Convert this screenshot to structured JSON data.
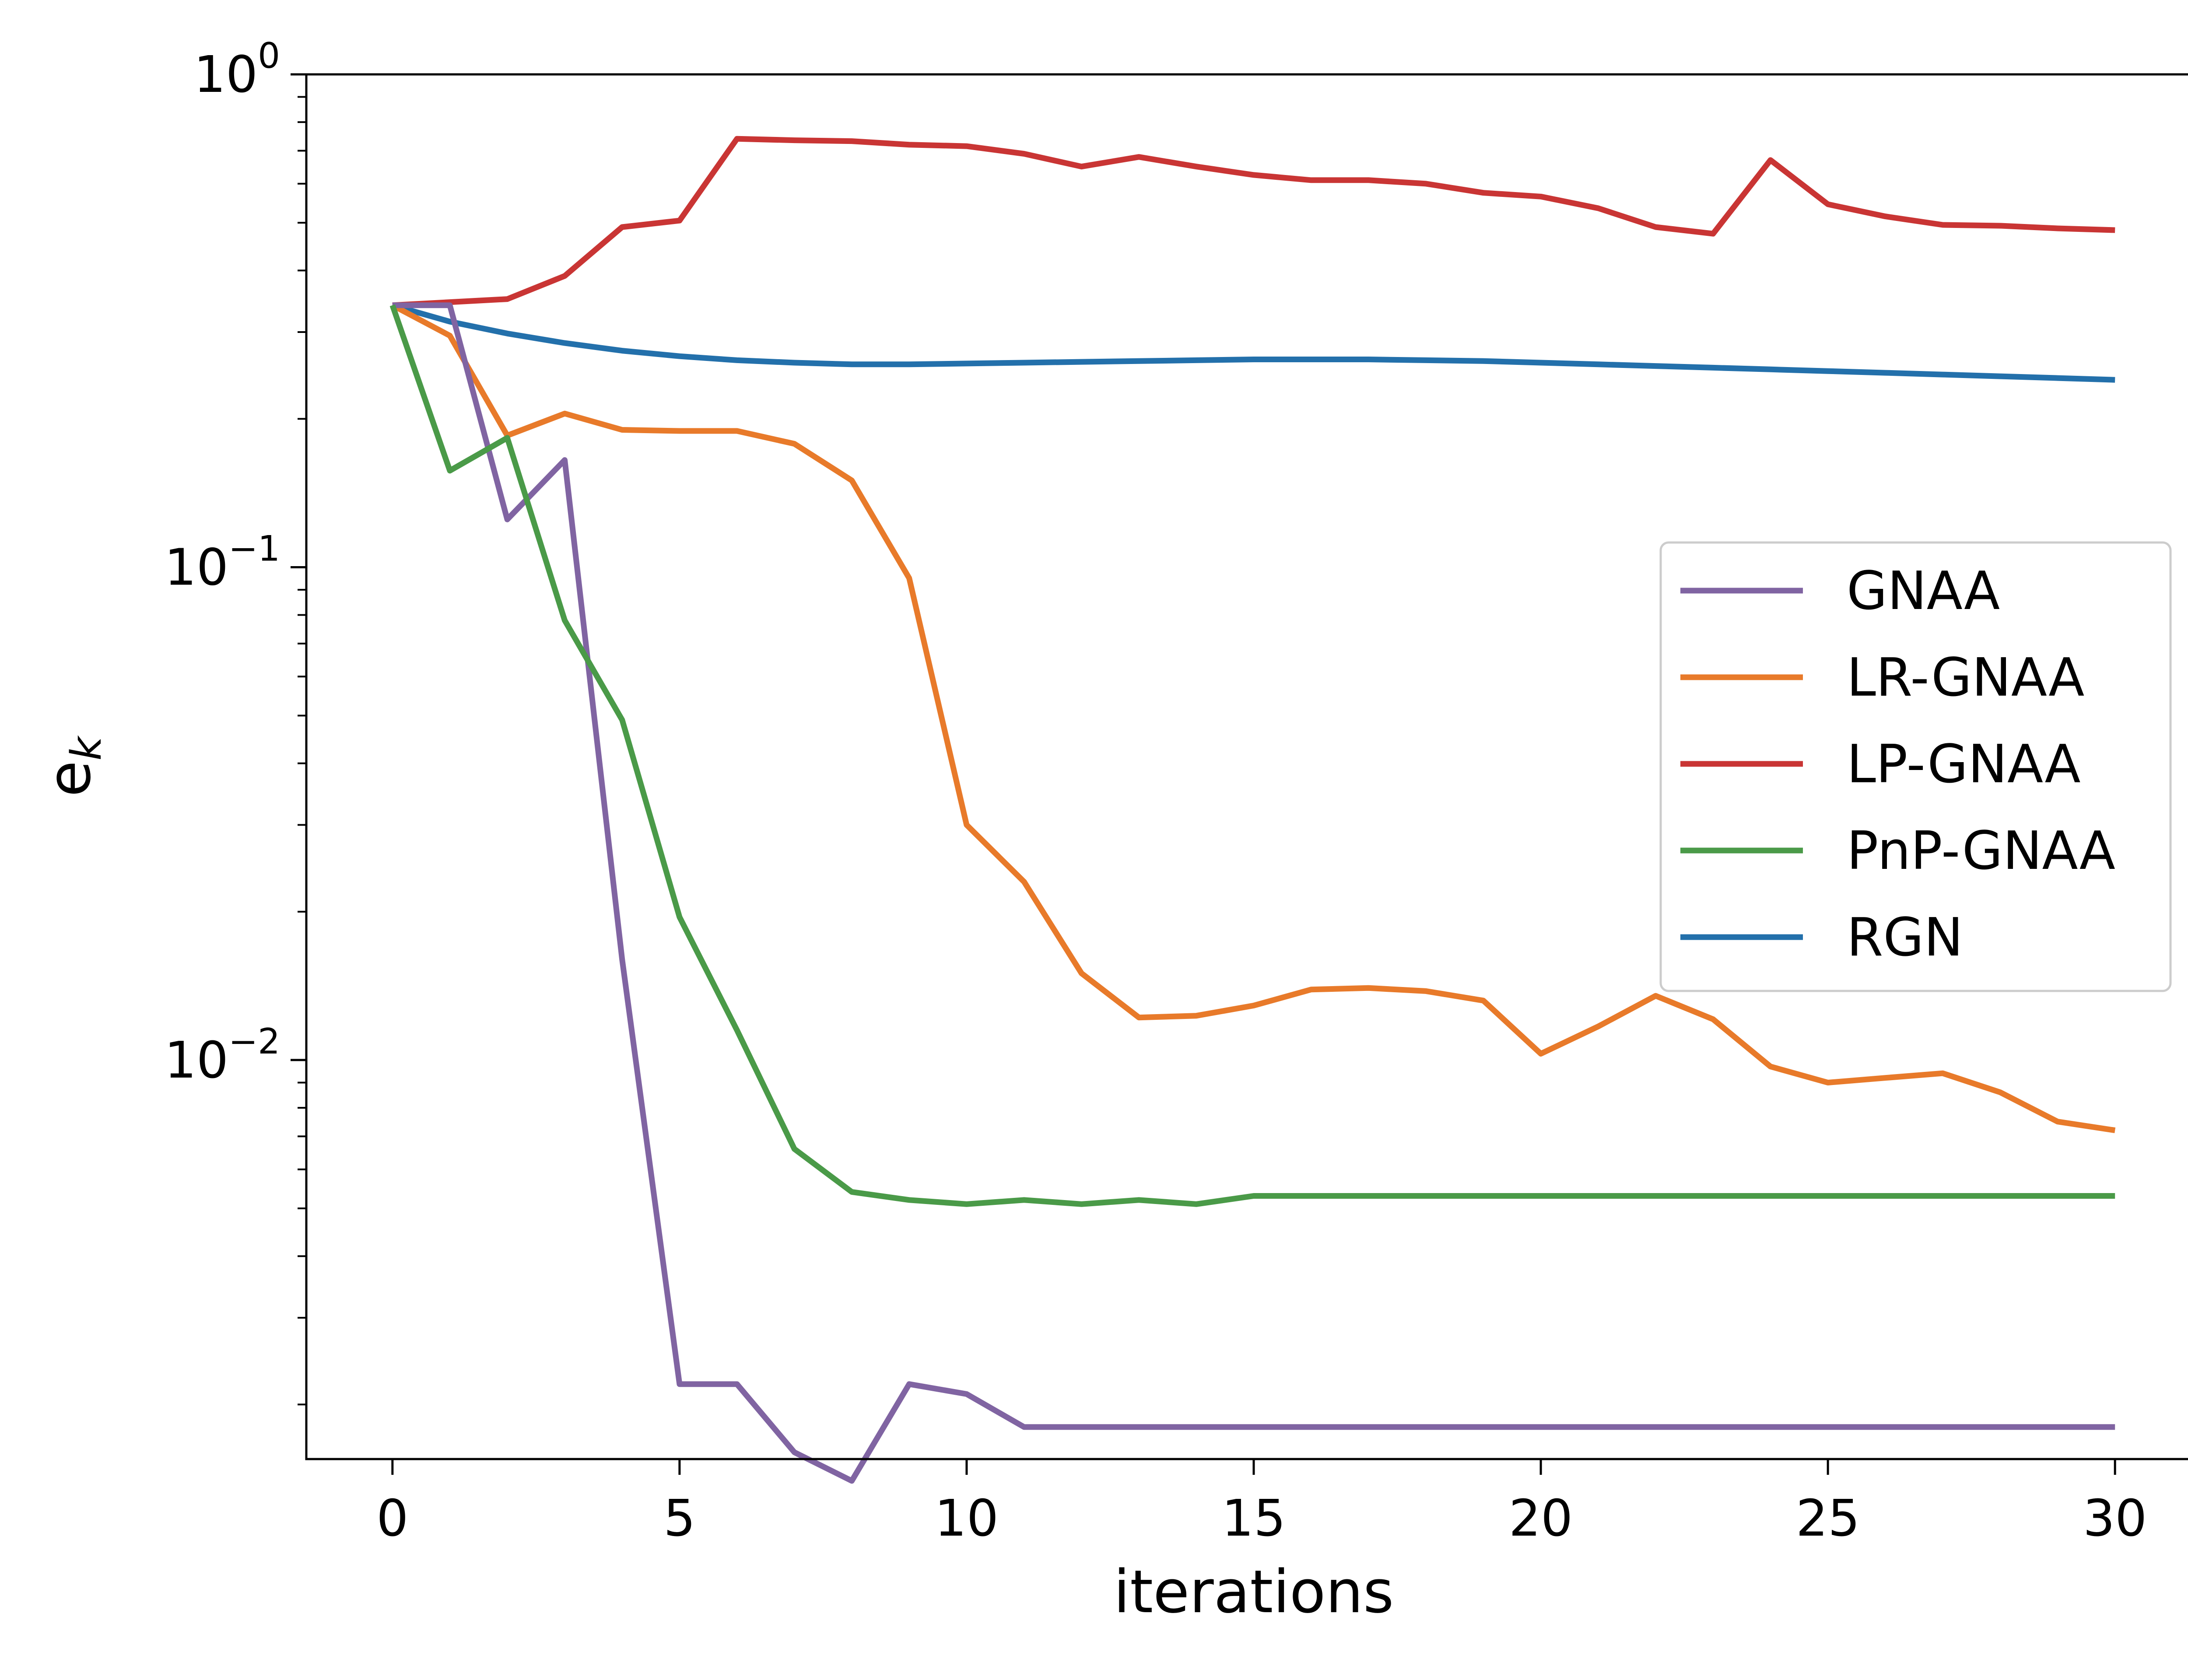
{
  "chart_data": {
    "type": "line",
    "title": "",
    "xlabel": "iterations",
    "ylabel": "e",
    "ylabel_subscript": "k",
    "yscale": "log",
    "xlim": [
      -1.5,
      31.5
    ],
    "ylim": [
      0.00155,
      1.0
    ],
    "xticks": [
      0,
      5,
      10,
      15,
      20,
      25,
      30
    ],
    "xtick_labels": [
      "0",
      "5",
      "10",
      "15",
      "20",
      "25",
      "30"
    ],
    "yticks": [
      {
        "value": 1.0,
        "base": "10",
        "exp": "0"
      },
      {
        "value": 0.1,
        "base": "10",
        "exp": "−1"
      },
      {
        "value": 0.01,
        "base": "10",
        "exp": "−2"
      }
    ],
    "legend_position": "center-right",
    "series": [
      {
        "name": "GNAA",
        "color": "#8064a2",
        "x": [
          0,
          1,
          2,
          3,
          4,
          5,
          6,
          7,
          8,
          9,
          10,
          11,
          12,
          13,
          14,
          15,
          16,
          17,
          18,
          19,
          20,
          21,
          22,
          23,
          24,
          25,
          26,
          27,
          28,
          29,
          30
        ],
        "values": [
          0.34,
          0.34,
          0.125,
          0.165,
          0.016,
          0.0022,
          0.0022,
          0.0016,
          0.0014,
          0.0022,
          0.0021,
          0.0018,
          0.0018,
          0.0018,
          0.0018,
          0.0018,
          0.0018,
          0.0018,
          0.0018,
          0.0018,
          0.0018,
          0.0018,
          0.0018,
          0.0018,
          0.0018,
          0.0018,
          0.0018,
          0.0018,
          0.0018,
          0.0018,
          0.0018
        ]
      },
      {
        "name": "LR-GNAA",
        "color": "#e87a2a",
        "x": [
          0,
          1,
          2,
          3,
          4,
          5,
          6,
          7,
          8,
          9,
          10,
          11,
          12,
          13,
          14,
          15,
          16,
          17,
          18,
          19,
          20,
          21,
          22,
          23,
          24,
          25,
          26,
          27,
          28,
          29,
          30
        ],
        "values": [
          0.34,
          0.295,
          0.185,
          0.205,
          0.19,
          0.189,
          0.189,
          0.178,
          0.15,
          0.095,
          0.03,
          0.023,
          0.015,
          0.0122,
          0.0123,
          0.0129,
          0.0139,
          0.014,
          0.0138,
          0.0132,
          0.0103,
          0.0117,
          0.0135,
          0.0121,
          0.0097,
          0.009,
          0.0092,
          0.0094,
          0.0086,
          0.0075,
          0.0072
        ]
      },
      {
        "name": "LP-GNAA",
        "color": "#c93534",
        "x": [
          0,
          1,
          2,
          3,
          4,
          5,
          6,
          7,
          8,
          9,
          10,
          11,
          12,
          13,
          14,
          15,
          16,
          17,
          18,
          19,
          20,
          21,
          22,
          23,
          24,
          25,
          26,
          27,
          28,
          29,
          30
        ],
        "values": [
          0.34,
          0.345,
          0.35,
          0.39,
          0.49,
          0.505,
          0.74,
          0.735,
          0.732,
          0.72,
          0.715,
          0.69,
          0.65,
          0.68,
          0.65,
          0.625,
          0.61,
          0.61,
          0.6,
          0.575,
          0.565,
          0.535,
          0.49,
          0.475,
          0.67,
          0.545,
          0.515,
          0.495,
          0.493,
          0.487,
          0.483
        ]
      },
      {
        "name": "PnP-GNAA",
        "color": "#4a9a48",
        "x": [
          0,
          1,
          2,
          3,
          4,
          5,
          6,
          7,
          8,
          9,
          10,
          11,
          12,
          13,
          14,
          15,
          16,
          17,
          18,
          19,
          20,
          21,
          22,
          23,
          24,
          25,
          26,
          27,
          28,
          29,
          30
        ],
        "values": [
          0.34,
          0.157,
          0.183,
          0.078,
          0.049,
          0.0195,
          0.0115,
          0.0066,
          0.0054,
          0.0052,
          0.0051,
          0.0052,
          0.0051,
          0.0052,
          0.0051,
          0.0053,
          0.0053,
          0.0053,
          0.0053,
          0.0053,
          0.0053,
          0.0053,
          0.0053,
          0.0053,
          0.0053,
          0.0053,
          0.0053,
          0.0053,
          0.0053,
          0.0053,
          0.0053
        ]
      },
      {
        "name": "RGN",
        "color": "#2370ab",
        "x": [
          0,
          1,
          2,
          3,
          4,
          5,
          6,
          7,
          8,
          9,
          10,
          11,
          12,
          13,
          14,
          15,
          16,
          17,
          18,
          19,
          20,
          21,
          22,
          23,
          24,
          25,
          26,
          27,
          28,
          29,
          30
        ],
        "values": [
          0.34,
          0.315,
          0.298,
          0.285,
          0.275,
          0.268,
          0.263,
          0.26,
          0.258,
          0.258,
          0.259,
          0.26,
          0.261,
          0.262,
          0.263,
          0.264,
          0.264,
          0.264,
          0.263,
          0.262,
          0.26,
          0.258,
          0.256,
          0.254,
          0.252,
          0.25,
          0.248,
          0.246,
          0.244,
          0.242,
          0.24
        ]
      }
    ]
  }
}
